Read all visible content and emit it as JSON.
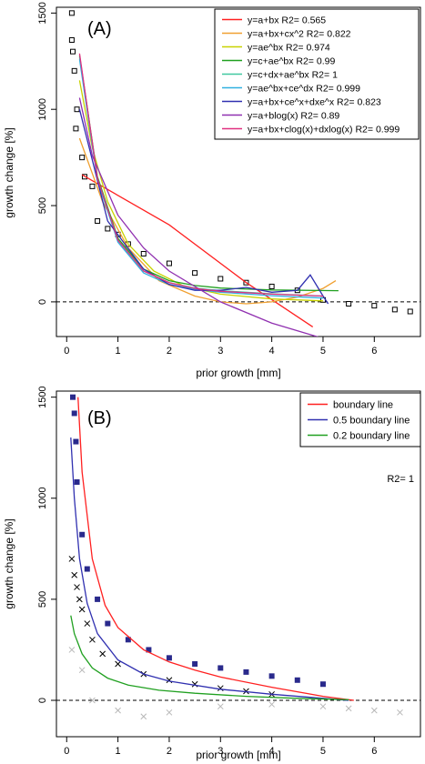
{
  "chart_data": [
    {
      "type": "scatter",
      "panel_label": "(A)",
      "xlabel": "prior growth [mm]",
      "ylabel": "growth change [%]",
      "xlim": [
        -0.2,
        6.9
      ],
      "ylim": [
        -180,
        1530
      ],
      "x_ticks": [
        0,
        1,
        2,
        3,
        4,
        5,
        6
      ],
      "y_ticks": [
        0,
        500,
        1000,
        1500
      ],
      "reference_line_y": 0,
      "legend_position": "top-right",
      "series": [
        {
          "name": "y=a+bx R2= 0.565",
          "color": "#ff2020",
          "x": [
            0.3,
            2.0,
            3.5,
            4.8
          ],
          "y": [
            660,
            400,
            100,
            -130
          ]
        },
        {
          "name": "y=a+bx+cx^2 R2= 0.822",
          "color": "#f0a030",
          "x": [
            0.25,
            0.7,
            1.2,
            1.8,
            2.5,
            3.0,
            3.5,
            4.0,
            4.5,
            5.0,
            5.25
          ],
          "y": [
            850,
            520,
            280,
            110,
            30,
            0,
            -10,
            0,
            25,
            70,
            110
          ]
        },
        {
          "name": "y=ae^bx R2= 0.974",
          "color": "#c8d200",
          "x": [
            0.25,
            0.5,
            0.8,
            1.2,
            1.7,
            2.3,
            3.0,
            4.0,
            5.0
          ],
          "y": [
            1150,
            800,
            520,
            300,
            160,
            80,
            40,
            15,
            5
          ]
        },
        {
          "name": "y=c+ae^bx R2= 0.99",
          "color": "#20a020",
          "x": [
            0.25,
            0.6,
            1.0,
            1.5,
            2.0,
            2.5,
            3.0,
            4.0,
            5.3
          ],
          "y": [
            1280,
            650,
            330,
            170,
            110,
            85,
            72,
            62,
            58
          ]
        },
        {
          "name": "y=c+dx+ae^bx R2= 1",
          "color": "#40c8a0",
          "x": [
            0.25,
            0.6,
            1.0,
            1.5,
            2.0,
            2.5,
            3.0,
            4.0,
            5.0
          ],
          "y": [
            1270,
            640,
            320,
            160,
            100,
            72,
            58,
            42,
            30
          ]
        },
        {
          "name": "y=ae^bx+ce^dx R2= 0.999",
          "color": "#30b0e0",
          "x": [
            0.25,
            0.6,
            1.0,
            1.5,
            2.0,
            2.5,
            3.0,
            4.0,
            5.0
          ],
          "y": [
            1260,
            630,
            310,
            150,
            90,
            65,
            50,
            32,
            20
          ]
        },
        {
          "name": "y=a+bx+ce^x+dxe^x R2= 0.823",
          "color": "#3030b0",
          "x": [
            0.25,
            0.8,
            1.5,
            2.0,
            2.5,
            3.0,
            3.5,
            4.0,
            4.5,
            4.75,
            5.0,
            5.1
          ],
          "y": [
            1000,
            420,
            170,
            90,
            60,
            60,
            75,
            50,
            60,
            140,
            30,
            -10
          ]
        },
        {
          "name": "y=a+blog(x) R2= 0.89",
          "color": "#9030b0",
          "x": [
            0.25,
            0.5,
            1.0,
            1.5,
            2.0,
            3.0,
            4.0,
            5.0,
            5.2
          ],
          "y": [
            1060,
            760,
            450,
            280,
            160,
            0,
            -110,
            -190,
            -200
          ]
        },
        {
          "name": "y=a+bx+clog(x)+dxlog(x) R2= 0.999",
          "color": "#e03080",
          "x": [
            0.25,
            0.6,
            1.0,
            1.5,
            2.0,
            2.5,
            3.0,
            4.0,
            5.0
          ],
          "y": [
            1290,
            640,
            320,
            160,
            100,
            70,
            55,
            40,
            30
          ]
        }
      ],
      "scatter_points": {
        "marker": "open-square",
        "x": [
          0.1,
          0.1,
          0.12,
          0.15,
          0.2,
          0.18,
          0.3,
          0.35,
          0.5,
          0.6,
          0.8,
          1.0,
          1.2,
          1.5,
          2.0,
          2.5,
          3.0,
          3.5,
          4.0,
          4.5,
          5.0,
          5.5,
          6.0,
          6.4,
          6.7
        ],
        "y": [
          1500,
          1360,
          1300,
          1200,
          1000,
          900,
          750,
          650,
          600,
          420,
          380,
          350,
          300,
          250,
          200,
          150,
          120,
          100,
          80,
          60,
          10,
          -10,
          -20,
          -40,
          -50
        ]
      }
    },
    {
      "type": "scatter",
      "panel_label": "(B)",
      "xlabel": "prior growth [mm]",
      "ylabel": "growth change [%]",
      "xlim": [
        -0.2,
        6.9
      ],
      "ylim": [
        -180,
        1530
      ],
      "x_ticks": [
        0,
        1,
        2,
        3,
        4,
        5,
        6
      ],
      "y_ticks": [
        0,
        500,
        1000,
        1500
      ],
      "reference_line_y": 0,
      "legend_position": "top-right",
      "annotation": "R2= 1",
      "series": [
        {
          "name": "boundary line",
          "color": "#ff2020",
          "x": [
            0.22,
            0.3,
            0.5,
            0.75,
            1.0,
            1.5,
            2.0,
            2.5,
            3.0,
            4.0,
            5.0,
            5.6
          ],
          "y": [
            1500,
            1130,
            700,
            470,
            360,
            250,
            190,
            150,
            115,
            65,
            20,
            0
          ]
        },
        {
          "name": "0.5 boundary line",
          "color": "#3030b0",
          "x": [
            0.08,
            0.15,
            0.25,
            0.4,
            0.6,
            1.0,
            1.5,
            2.0,
            3.0,
            4.0,
            5.0,
            5.5
          ],
          "y": [
            1300,
            1000,
            700,
            480,
            330,
            200,
            130,
            95,
            55,
            30,
            10,
            0
          ]
        },
        {
          "name": "0.2 boundary line",
          "color": "#20a020",
          "x": [
            0.08,
            0.15,
            0.3,
            0.5,
            0.8,
            1.2,
            1.8,
            2.5,
            3.5,
            4.5,
            5.5
          ],
          "y": [
            420,
            330,
            230,
            160,
            110,
            75,
            50,
            35,
            20,
            10,
            3
          ]
        }
      ],
      "scatter_points": {
        "black_cross": {
          "x": [
            0.1,
            0.15,
            0.2,
            0.25,
            0.3,
            0.4,
            0.5,
            0.7,
            1.0,
            1.5,
            2.0,
            2.5,
            3.0,
            3.5,
            4.0
          ],
          "y": [
            700,
            620,
            560,
            500,
            450,
            380,
            300,
            230,
            180,
            130,
            100,
            80,
            60,
            45,
            30
          ]
        },
        "blue_square": {
          "x": [
            0.12,
            0.15,
            0.18,
            0.2,
            0.3,
            0.4,
            0.6,
            0.8,
            1.2,
            1.6,
            2.0,
            2.5,
            3.0,
            3.5,
            4.0,
            4.5,
            5.0
          ],
          "y": [
            1500,
            1420,
            1280,
            1080,
            820,
            650,
            500,
            380,
            300,
            250,
            210,
            180,
            160,
            140,
            120,
            100,
            80
          ]
        },
        "gray_cross": {
          "x": [
            0.1,
            0.3,
            0.5,
            1.0,
            1.5,
            2.0,
            3.0,
            4.0,
            5.0,
            5.5,
            6.0,
            6.5
          ],
          "y": [
            250,
            150,
            0,
            -50,
            -80,
            -60,
            -30,
            -20,
            -30,
            -40,
            -50,
            -60
          ]
        }
      }
    }
  ]
}
